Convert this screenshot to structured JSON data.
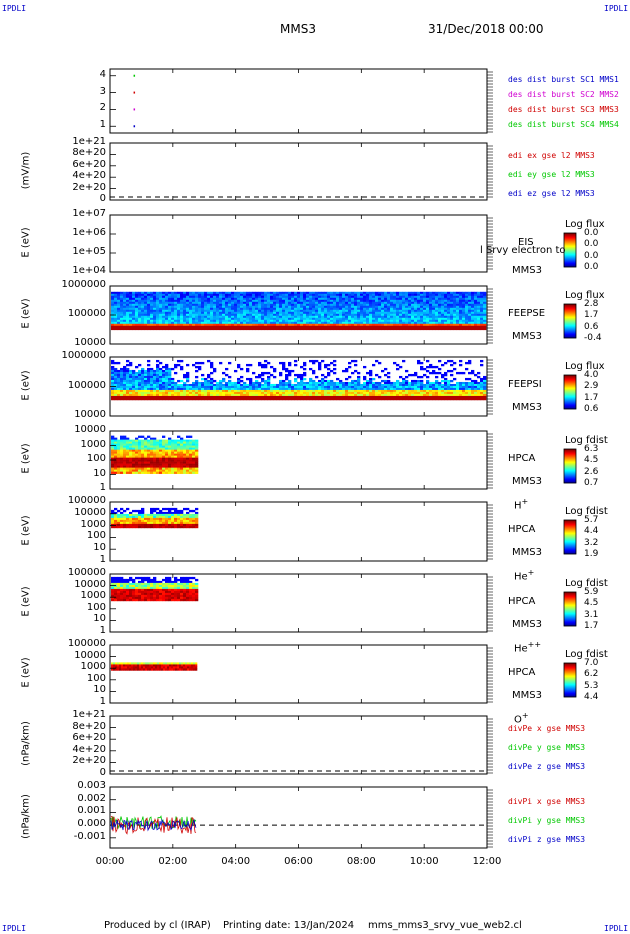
{
  "header": {
    "corner_tl": "IPDLI",
    "corner_tr": "IPDLI",
    "corner_bl": "IPDLI",
    "corner_br": "IPDLI",
    "mission": "MMS3",
    "date": "31/Dec/2018 00:00"
  },
  "footer": {
    "produced": "Produced by cl (IRAP)",
    "printing": "Printing date: 13/Jan/2024",
    "file": "mms_mms3_srvy_vue_web2.cl"
  },
  "colors": {
    "mms1": "#0000c8",
    "mms2": "#d000d0",
    "mms3": "#d00000",
    "mms4": "#00c800",
    "x": "#d00000",
    "y": "#00c800",
    "z": "#0000c8"
  },
  "chart_data": [
    {
      "type": "scatter",
      "x_ticks": [
        "00:00",
        "02:00",
        "04:00",
        "06:00",
        "08:00",
        "10:00",
        "12:00"
      ],
      "y_ticks": [
        "1",
        "2",
        "3",
        "4"
      ],
      "ylim": [
        0.6,
        4.4
      ],
      "series": [
        {
          "name": "des dist burst SC1 MMS1",
          "x": [
            0.75
          ],
          "y": [
            1
          ]
        },
        {
          "name": "des dist burst SC2 MMS2",
          "x": [
            0.75
          ],
          "y": [
            2
          ]
        },
        {
          "name": "des dist burst SC3 MMS3",
          "x": [
            0.75
          ],
          "y": [
            3
          ]
        },
        {
          "name": "des dist burst SC4 MMS4",
          "x": [
            0.75
          ],
          "y": [
            4
          ]
        }
      ]
    },
    {
      "type": "line",
      "ylabel": "(mV/m)",
      "y_ticks": [
        "1e+21",
        "8e+20",
        "6e+20",
        "4e+20",
        "2e+20",
        "0"
      ],
      "series": [
        {
          "name": "edi ex gse l2 MMS3",
          "values": []
        },
        {
          "name": "edi ey gse l2 MMS3",
          "values": []
        },
        {
          "name": "edi ez gse l2 MMS3",
          "values": []
        }
      ]
    },
    {
      "type": "heatmap",
      "ylabel": "E (eV)",
      "y_ticks": [
        "1e+07",
        "1e+06",
        "1e+05",
        "1e+04"
      ],
      "instrument": "EIS",
      "overlay_text": "l Srvy electron to",
      "spacecraft": "MMS3",
      "colorbar_title": "Log flux",
      "colorbar_values": [
        "0.0",
        "0.0",
        "0.0",
        "0.0"
      ]
    },
    {
      "type": "heatmap",
      "ylabel": "E (eV)",
      "y_ticks": [
        "1000000",
        "100000",
        "10000"
      ],
      "instrument": "FEEPSE",
      "spacecraft": "MMS3",
      "colorbar_title": "Log flux",
      "colorbar_values": [
        "2.8",
        "1.7",
        "0.6",
        "-0.4"
      ],
      "time_range_hours": [
        0,
        12
      ]
    },
    {
      "type": "heatmap",
      "ylabel": "E (eV)",
      "y_ticks": [
        "1000000",
        "100000",
        "10000"
      ],
      "instrument": "FEEPSI",
      "spacecraft": "MMS3",
      "colorbar_title": "Log flux",
      "colorbar_values": [
        "4.0",
        "2.9",
        "1.7",
        "0.6"
      ],
      "time_range_hours": [
        0,
        12
      ]
    },
    {
      "type": "heatmap",
      "ylabel": "E (eV)",
      "y_ticks": [
        "10000",
        "1000",
        "100",
        "10",
        "1"
      ],
      "instrument": "HPCA",
      "spacecraft": "MMS3",
      "species": "H",
      "species_charge": "+",
      "colorbar_title": "Log fdist",
      "colorbar_values": [
        "6.3",
        "4.5",
        "2.6",
        "0.7"
      ],
      "time_range_hours": [
        0,
        2.8
      ]
    },
    {
      "type": "heatmap",
      "ylabel": "E (eV)",
      "y_ticks": [
        "100000",
        "10000",
        "1000",
        "100",
        "10",
        "1"
      ],
      "instrument": "HPCA",
      "spacecraft": "MMS3",
      "species": "He",
      "species_charge": "+",
      "colorbar_title": "Log fdist",
      "colorbar_values": [
        "5.7",
        "4.4",
        "3.2",
        "1.9"
      ],
      "time_range_hours": [
        0,
        2.8
      ]
    },
    {
      "type": "heatmap",
      "ylabel": "E (eV)",
      "y_ticks": [
        "100000",
        "10000",
        "1000",
        "100",
        "10",
        "1"
      ],
      "instrument": "HPCA",
      "spacecraft": "MMS3",
      "species": "He",
      "species_charge": "++",
      "colorbar_title": "Log fdist",
      "colorbar_values": [
        "5.9",
        "4.5",
        "3.1",
        "1.7"
      ],
      "time_range_hours": [
        0,
        2.8
      ]
    },
    {
      "type": "heatmap",
      "ylabel": "E (eV)",
      "y_ticks": [
        "100000",
        "10000",
        "1000",
        "100",
        "10",
        "1"
      ],
      "instrument": "HPCA",
      "spacecraft": "MMS3",
      "species": "O",
      "species_charge": "+",
      "colorbar_title": "Log fdist",
      "colorbar_values": [
        "7.0",
        "6.2",
        "5.3",
        "4.4"
      ],
      "time_range_hours": [
        0,
        2.8
      ]
    },
    {
      "type": "line",
      "ylabel": "(nPa/km)",
      "y_ticks": [
        "1e+21",
        "8e+20",
        "6e+20",
        "4e+20",
        "2e+20",
        "0"
      ],
      "series": [
        {
          "name": "divPe x gse MMS3",
          "values": []
        },
        {
          "name": "divPe y gse MMS3",
          "values": []
        },
        {
          "name": "divPe z gse MMS3",
          "values": []
        }
      ]
    },
    {
      "type": "line",
      "ylabel": "(nPa/km)",
      "y_ticks": [
        "0.003",
        "0.002",
        "0.001",
        "0.000",
        "-0.001"
      ],
      "ylim": [
        -0.0018,
        0.003
      ],
      "time_range_hours": [
        0,
        2.8
      ],
      "series": [
        {
          "name": "divPi x gse MMS3",
          "amplitude": 0.0007
        },
        {
          "name": "divPi y gse MMS3",
          "amplitude": 0.0005
        },
        {
          "name": "divPi z gse MMS3",
          "amplitude": 0.0004
        }
      ]
    }
  ]
}
